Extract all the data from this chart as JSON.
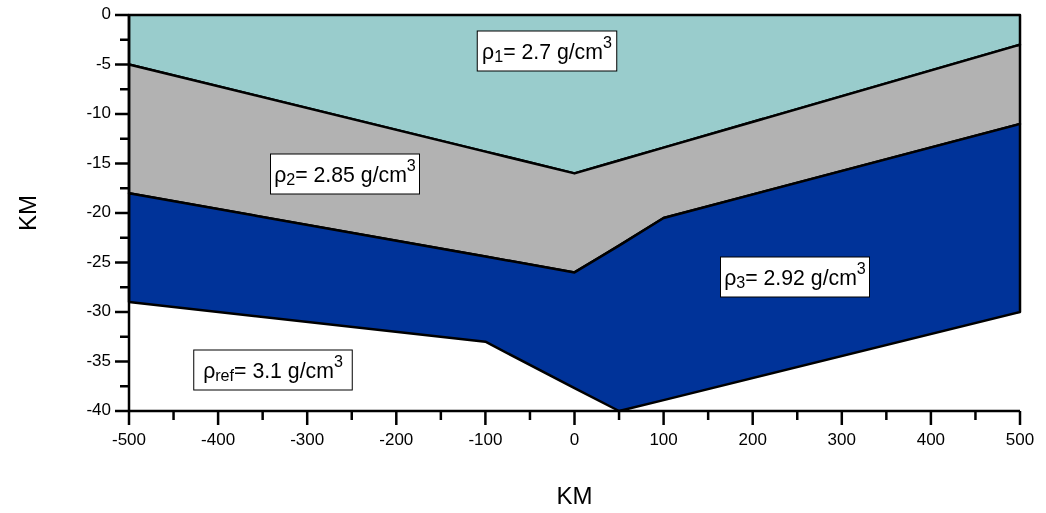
{
  "chart_data": {
    "type": "area",
    "stacked": true,
    "xlabel": "KM",
    "ylabel": "KM",
    "xlim": [
      -500,
      500
    ],
    "ylim": [
      -40,
      0
    ],
    "xticks": [
      -500,
      {
        "value": -450,
        "label": null
      },
      -400,
      {
        "value": -350,
        "label": null
      },
      -300,
      {
        "value": -250,
        "label": null
      },
      -200,
      {
        "value": -150,
        "label": null
      },
      -100,
      {
        "value": -50,
        "label": null
      },
      0,
      {
        "value": 50,
        "label": null
      },
      100,
      {
        "value": 150,
        "label": null
      },
      200,
      {
        "value": 250,
        "label": null
      },
      300,
      {
        "value": 350,
        "label": null
      },
      400,
      {
        "value": 450,
        "label": null
      },
      500
    ],
    "yticks": [
      0,
      {
        "value": -2.5,
        "label": null
      },
      -5,
      {
        "value": -7.5,
        "label": null
      },
      -10,
      {
        "value": -12.5,
        "label": null
      },
      -15,
      {
        "value": -17.5,
        "label": null
      },
      -20,
      {
        "value": -22.5,
        "label": null
      },
      -25,
      {
        "value": -27.5,
        "label": null
      },
      -30,
      {
        "value": -32.5,
        "label": null
      },
      -35,
      {
        "value": -37.5,
        "label": null
      },
      -40
    ],
    "grid": false,
    "x": [
      -500,
      -100,
      0,
      50,
      100,
      500
    ],
    "series": [
      {
        "color": "#99cccc",
        "values": [
          -5,
          -13.8,
          -16,
          -14.7,
          -13.4,
          -3
        ]
      },
      {
        "color": "#b2b2b2",
        "values": [
          -13,
          -10.6,
          -10,
          -8.6,
          -7.1,
          -8
        ]
      },
      {
        "color": "#003399",
        "values": [
          -11,
          -8.6,
          -11.7,
          -16.7,
          -18.4,
          -19
        ]
      }
    ],
    "annotations": [
      "ρ$_{1}$= 2.7 g/cm$^{3}$",
      "ρ$_{2}$= 2.85 g/cm$^{3}$",
      "ρ$_{3}$= 2.92 g/cm$^{3}$",
      "ρ$_{ref}$= 3.1 g/cm$^{3}$"
    ]
  }
}
